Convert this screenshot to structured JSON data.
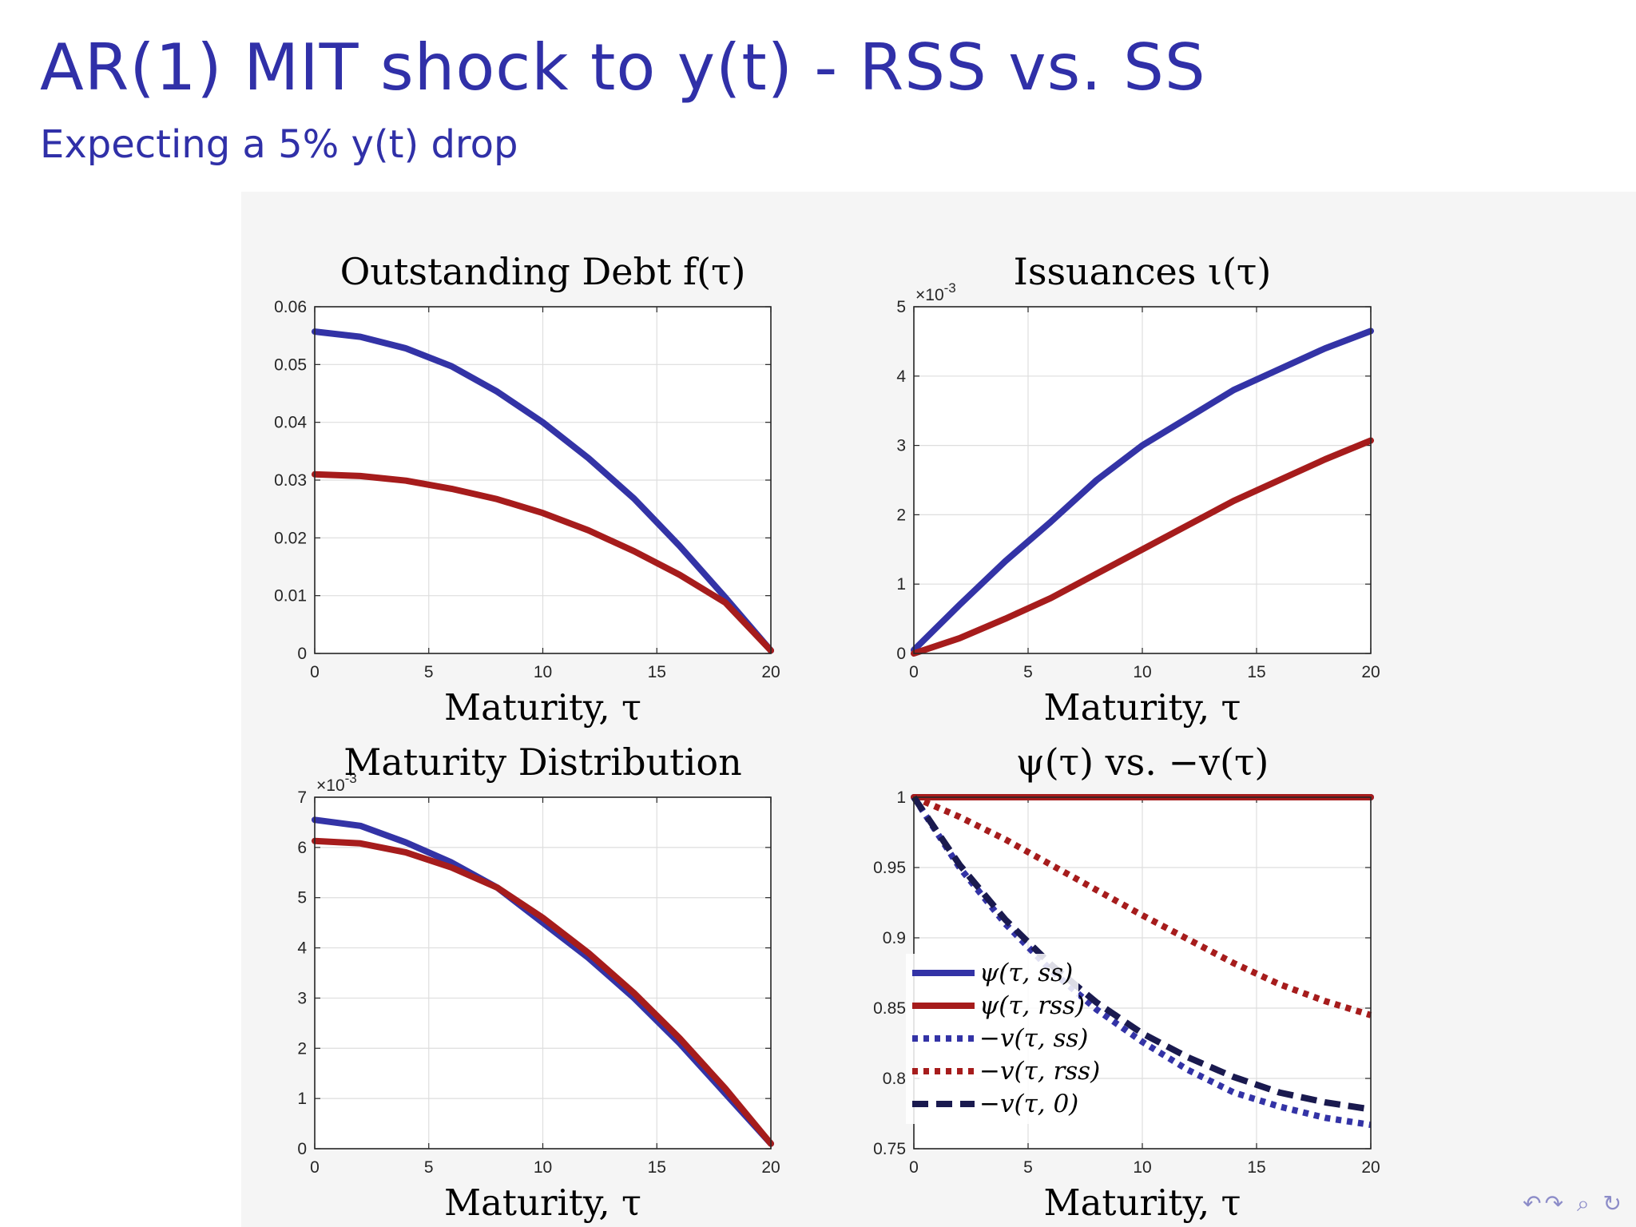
{
  "slide": {
    "title": "AR(1) MIT shock to y(t) - RSS vs. SS",
    "subtitle": "Expecting a 5% y(t) drop"
  },
  "colors": {
    "title": "#3030a8",
    "ss_blue": "#3333a6",
    "rss_red": "#a61c1c",
    "zero_navy": "#1a1a4f",
    "nav_icons": "#8c8cc8"
  },
  "nav": {
    "icons": [
      "first-icon",
      "back-icon",
      "search-icon",
      "refresh-icon"
    ],
    "glyphs": "↶↷ ⌕ ↻"
  },
  "chart_data": [
    {
      "type": "line",
      "title": "Outstanding Debt f(τ)",
      "xlabel": "Maturity, τ",
      "ylabel": "",
      "xlim": [
        0,
        20
      ],
      "ylim": [
        0,
        0.06
      ],
      "xticks": [
        0,
        5,
        10,
        15,
        20
      ],
      "yticks": [
        "0",
        "0.01",
        "0.02",
        "0.03",
        "0.04",
        "0.05",
        "0.06"
      ],
      "ytick_values": [
        0,
        0.01,
        0.02,
        0.03,
        0.04,
        0.05,
        0.06
      ],
      "y_exponent": "",
      "grid": true,
      "x": [
        0,
        2,
        4,
        6,
        8,
        10,
        12,
        14,
        16,
        18,
        20
      ],
      "series": [
        {
          "color": "#3333a6",
          "style": "solid",
          "values": [
            0.0557,
            0.0548,
            0.0528,
            0.0497,
            0.0453,
            0.04,
            0.0338,
            0.0268,
            0.0186,
            0.0097,
            0.0005
          ]
        },
        {
          "color": "#a61c1c",
          "style": "solid",
          "values": [
            0.031,
            0.0307,
            0.0299,
            0.0285,
            0.0267,
            0.0243,
            0.0213,
            0.0177,
            0.0136,
            0.0088,
            0.0005
          ]
        }
      ]
    },
    {
      "type": "line",
      "title": "Issuances ι(τ)",
      "xlabel": "Maturity, τ",
      "ylabel": "",
      "xlim": [
        0,
        20
      ],
      "ylim": [
        0,
        0.005
      ],
      "xticks": [
        0,
        5,
        10,
        15,
        20
      ],
      "yticks": [
        "0",
        "1",
        "2",
        "3",
        "4",
        "5"
      ],
      "ytick_values": [
        0,
        0.001,
        0.002,
        0.003,
        0.004,
        0.005
      ],
      "y_exponent": "×10-3",
      "grid": true,
      "x": [
        0,
        2,
        4,
        6,
        8,
        10,
        12,
        14,
        16,
        18,
        20
      ],
      "series": [
        {
          "color": "#3333a6",
          "style": "solid",
          "values": [
            5e-05,
            0.0007,
            0.00133,
            0.0019,
            0.0025,
            0.003,
            0.0034,
            0.0038,
            0.0041,
            0.0044,
            0.00465
          ]
        },
        {
          "color": "#a61c1c",
          "style": "solid",
          "values": [
            0.0,
            0.00022,
            0.0005,
            0.0008,
            0.00115,
            0.0015,
            0.00185,
            0.0022,
            0.0025,
            0.0028,
            0.00307
          ]
        }
      ]
    },
    {
      "type": "line",
      "title": "Maturity Distribution",
      "xlabel": "Maturity, τ",
      "ylabel": "",
      "xlim": [
        0,
        20
      ],
      "ylim": [
        0,
        0.007
      ],
      "xticks": [
        0,
        5,
        10,
        15,
        20
      ],
      "yticks": [
        "0",
        "1",
        "2",
        "3",
        "4",
        "5",
        "6",
        "7"
      ],
      "ytick_values": [
        0,
        0.001,
        0.002,
        0.003,
        0.004,
        0.005,
        0.006,
        0.007
      ],
      "y_exponent": "×10-3",
      "grid": true,
      "x": [
        0,
        2,
        4,
        6,
        8,
        10,
        12,
        14,
        16,
        18,
        20
      ],
      "series": [
        {
          "color": "#3333a6",
          "style": "solid",
          "values": [
            0.00655,
            0.00643,
            0.0061,
            0.0057,
            0.0052,
            0.0045,
            0.0038,
            0.003,
            0.0021,
            0.0011,
            0.0001
          ]
        },
        {
          "color": "#a61c1c",
          "style": "solid",
          "values": [
            0.00613,
            0.00608,
            0.0059,
            0.0056,
            0.0052,
            0.0046,
            0.0039,
            0.0031,
            0.0022,
            0.0012,
            0.0001
          ]
        }
      ]
    },
    {
      "type": "line",
      "title": "ψ(τ) vs. −v(τ)",
      "xlabel": "Maturity, τ",
      "ylabel": "",
      "xlim": [
        0,
        20
      ],
      "ylim": [
        0.75,
        1
      ],
      "xticks": [
        0,
        5,
        10,
        15,
        20
      ],
      "yticks": [
        "0.75",
        "0.8",
        "0.85",
        "0.9",
        "0.95",
        "1"
      ],
      "ytick_values": [
        0.75,
        0.8,
        0.85,
        0.9,
        0.95,
        1.0
      ],
      "y_exponent": "",
      "grid": true,
      "legend_position": "left-middle",
      "x": [
        0,
        2,
        4,
        6,
        8,
        10,
        12,
        14,
        16,
        18,
        20
      ],
      "series": [
        {
          "name": "ψ(τ, ss)",
          "color": "#3333a6",
          "style": "solid",
          "values": [
            1,
            1,
            1,
            1,
            1,
            1,
            1,
            1,
            1,
            1,
            1
          ]
        },
        {
          "name": "ψ(τ, rss)",
          "color": "#a61c1c",
          "style": "solid",
          "values": [
            1,
            1,
            1,
            1,
            1,
            1,
            1,
            1,
            1,
            1,
            1
          ]
        },
        {
          "name": "−v(τ, ss)",
          "color": "#3333a6",
          "style": "dotted",
          "values": [
            1.0,
            0.95,
            0.91,
            0.877,
            0.849,
            0.826,
            0.806,
            0.79,
            0.78,
            0.772,
            0.767
          ]
        },
        {
          "name": "−v(τ, rss)",
          "color": "#a61c1c",
          "style": "dotted",
          "values": [
            1.0,
            0.986,
            0.97,
            0.952,
            0.934,
            0.916,
            0.899,
            0.882,
            0.867,
            0.855,
            0.845
          ]
        },
        {
          "name": "−v(τ, 0)",
          "color": "#1a1a4f",
          "style": "dashed",
          "values": [
            1.0,
            0.952,
            0.913,
            0.881,
            0.854,
            0.832,
            0.815,
            0.801,
            0.79,
            0.783,
            0.778
          ]
        }
      ]
    }
  ]
}
